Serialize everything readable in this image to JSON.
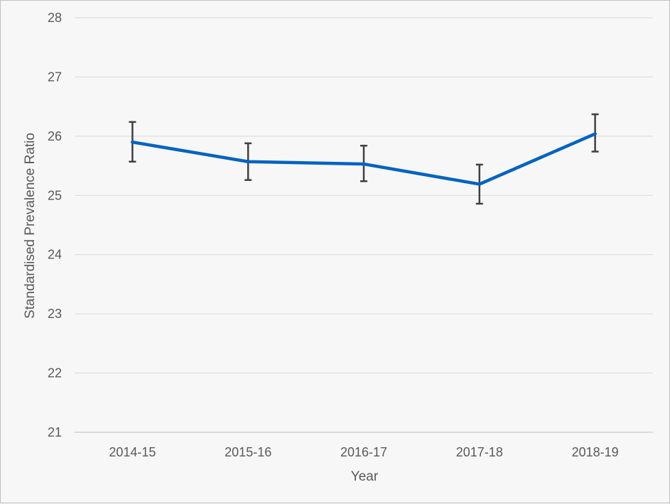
{
  "chart_data": {
    "type": "line",
    "xlabel": "Year",
    "ylabel": "Standardised Prevalence Ratio",
    "ylim": [
      21,
      28
    ],
    "y_ticks": [
      "21",
      "22",
      "23",
      "24",
      "25",
      "26",
      "27",
      "28"
    ],
    "categories": [
      "2014-15",
      "2015-16",
      "2016-17",
      "2017-18",
      "2018-19"
    ],
    "series": [
      {
        "values": [
          25.9,
          25.57,
          25.53,
          25.19,
          26.04
        ],
        "error_low": [
          25.57,
          25.26,
          25.24,
          24.86,
          25.74
        ],
        "error_high": [
          26.24,
          25.88,
          25.84,
          25.52,
          26.37
        ],
        "color": "#0563c1"
      }
    ],
    "grid": true,
    "legend": "none",
    "error_bar_color": "#404040",
    "gridline_color": "#d9d9d9"
  }
}
